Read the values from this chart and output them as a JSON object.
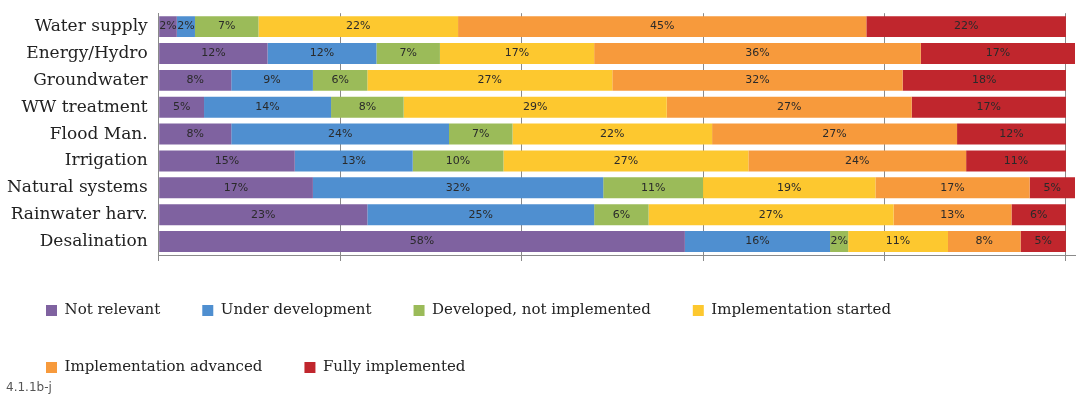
{
  "chart_data": {
    "type": "bar",
    "orientation": "horizontal",
    "stacked": true,
    "categories": [
      "Water supply",
      "Energy/Hydro",
      "Groundwater",
      "WW treatment",
      "Flood Man.",
      "Irrigation",
      "Natural systems",
      "Rainwater harv.",
      "Desalination"
    ],
    "xlim": [
      0,
      101
    ],
    "xticks": [
      {
        "value": 0,
        "label": null
      },
      {
        "value": 20,
        "label": null
      },
      {
        "value": 40,
        "label": null
      },
      {
        "value": 60,
        "label": null
      },
      {
        "value": 80,
        "label": null
      },
      {
        "value": 100,
        "label": null
      }
    ],
    "grid": "x",
    "tick_labels": "y",
    "legend": "bottom",
    "series": [
      {
        "name": "Not relevant",
        "color": "#7f62a0",
        "values": [
          2,
          12,
          8,
          5,
          8,
          15,
          17,
          23,
          58
        ],
        "value_labels": [
          "2%",
          "12%",
          "8%",
          "5%",
          "8%",
          "15%",
          "17%",
          "23%",
          "58%"
        ]
      },
      {
        "name": "Under development",
        "color": "#4f8fd0",
        "values": [
          2,
          12,
          9,
          14,
          24,
          13,
          32,
          25,
          16
        ],
        "value_labels": [
          "2%",
          "12%",
          "9%",
          "14%",
          "24%",
          "13%",
          "32%",
          "25%",
          "16%"
        ]
      },
      {
        "name": "Developed, not implemented",
        "color": "#9bbb59",
        "values": [
          7,
          7,
          6,
          8,
          7,
          10,
          11,
          6,
          2
        ],
        "value_labels": [
          "7%",
          "7%",
          "6%",
          "8%",
          "7%",
          "10%",
          "11%",
          "6%",
          "2%"
        ]
      },
      {
        "name": "Implementation started",
        "color": "#fdc82f",
        "values": [
          22,
          17,
          27,
          29,
          22,
          27,
          19,
          27,
          11
        ],
        "value_labels": [
          "22%",
          "17%",
          "27%",
          "29%",
          "22%",
          "27%",
          "19%",
          "27%",
          "11%"
        ]
      },
      {
        "name": "Implementation advanced",
        "color": "#f79a3c",
        "values": [
          45,
          36,
          32,
          27,
          27,
          24,
          17,
          13,
          8
        ],
        "value_labels": [
          "45%",
          "36%",
          "32%",
          "27%",
          "27%",
          "24%",
          "17%",
          "13%",
          "8%"
        ]
      },
      {
        "name": "Fully implemented",
        "color": "#c0262d",
        "values": [
          22,
          17,
          18,
          17,
          12,
          11,
          5,
          6,
          5
        ],
        "value_labels": [
          "22%",
          "17%",
          "18%",
          "17%",
          "12%",
          "11%",
          "5%",
          "6%",
          "5%"
        ]
      }
    ],
    "annotations": [
      "4.1.1b-j"
    ]
  }
}
